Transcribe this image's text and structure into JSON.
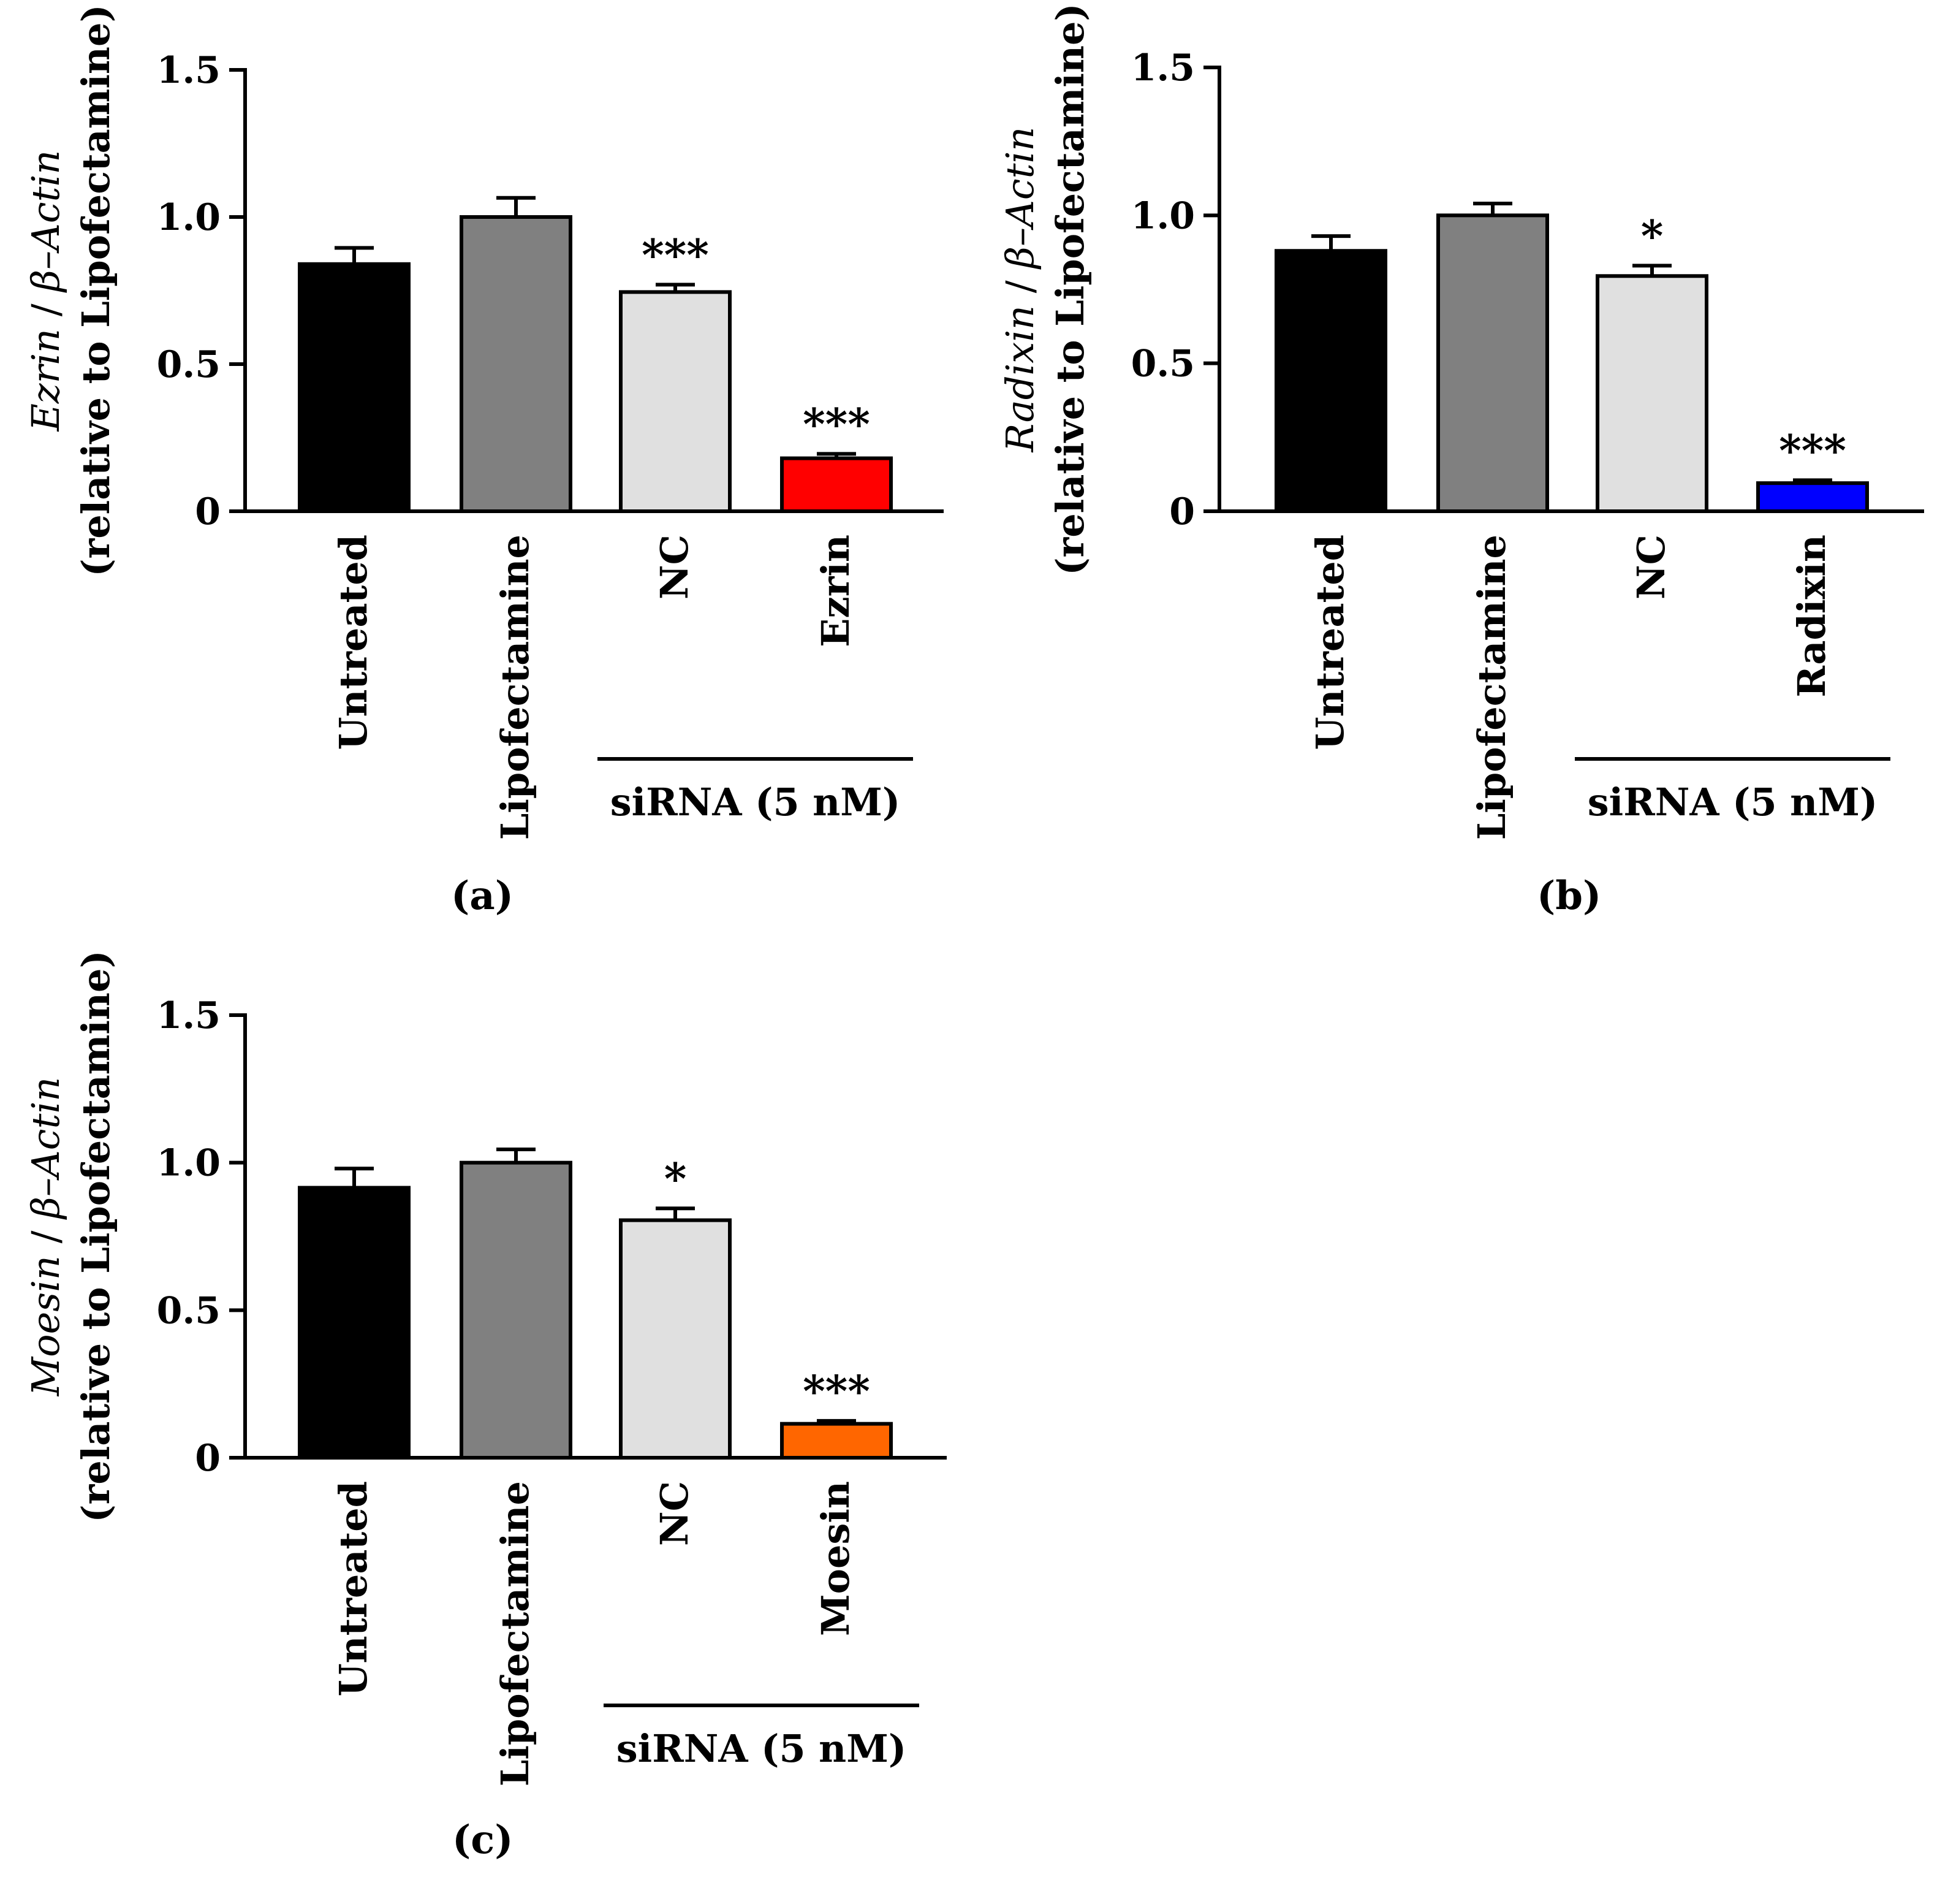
{
  "figure": {
    "panels": [
      "(a)",
      "(b)",
      "(c)"
    ]
  },
  "chart_data": [
    {
      "type": "bar",
      "panel_label": "(a)",
      "ylabel_gene": "Ezrin",
      "ylabel_sep": " / ",
      "ylabel_ref": "β–Actin",
      "ylabel_line2": "(relative to Lipofectamine)",
      "ylim": [
        0,
        1.5
      ],
      "yticks": [
        "0",
        "0.5",
        "1.0",
        "1.5"
      ],
      "ytick_values": [
        0,
        0.5,
        1.0,
        1.5
      ],
      "categories": [
        "Untreated",
        "Lipofectamine",
        "NC",
        "Ezrin"
      ],
      "values": [
        0.84,
        1.0,
        0.745,
        0.18
      ],
      "errors": [
        0.055,
        0.065,
        0.025,
        0.015
      ],
      "colors": [
        "#000000",
        "#808080",
        "#e0e0e0",
        "#ff0000"
      ],
      "significance": [
        "",
        "",
        "***",
        "***"
      ],
      "group_label": "siRNA (5 nM)"
    },
    {
      "type": "bar",
      "panel_label": "(b)",
      "ylabel_gene": "Radixin",
      "ylabel_sep": " / ",
      "ylabel_ref": "β–Actin",
      "ylabel_line2": "(relative to Lipofectamine)",
      "ylim": [
        0,
        1.5
      ],
      "yticks": [
        "0",
        "0.5",
        "1.0",
        "1.5"
      ],
      "ytick_values": [
        0,
        0.5,
        1.0,
        1.5
      ],
      "categories": [
        "Untreated",
        "Lipofectamine",
        "NC",
        "Radixin"
      ],
      "values": [
        0.88,
        1.0,
        0.795,
        0.095
      ],
      "errors": [
        0.05,
        0.04,
        0.035,
        0.01
      ],
      "colors": [
        "#000000",
        "#808080",
        "#e0e0e0",
        "#0000ff"
      ],
      "significance": [
        "",
        "",
        "*",
        "***"
      ],
      "group_label": "siRNA (5 nM)"
    },
    {
      "type": "bar",
      "panel_label": "(c)",
      "ylabel_gene": "Moesin",
      "ylabel_sep": " / ",
      "ylabel_ref": "β–Actin",
      "ylabel_line2": "(relative to Lipofectamine)",
      "ylim": [
        0,
        1.5
      ],
      "yticks": [
        "0",
        "0.5",
        "1.0",
        "1.5"
      ],
      "ytick_values": [
        0,
        0.5,
        1.0,
        1.5
      ],
      "categories": [
        "Untreated",
        "Lipofectamine",
        "NC",
        "Moesin"
      ],
      "values": [
        0.915,
        1.0,
        0.805,
        0.115
      ],
      "errors": [
        0.065,
        0.045,
        0.04,
        0.01
      ],
      "colors": [
        "#000000",
        "#808080",
        "#e0e0e0",
        "#ff6600"
      ],
      "significance": [
        "",
        "",
        "*",
        "***"
      ],
      "group_label": "siRNA (5 nM)"
    }
  ]
}
